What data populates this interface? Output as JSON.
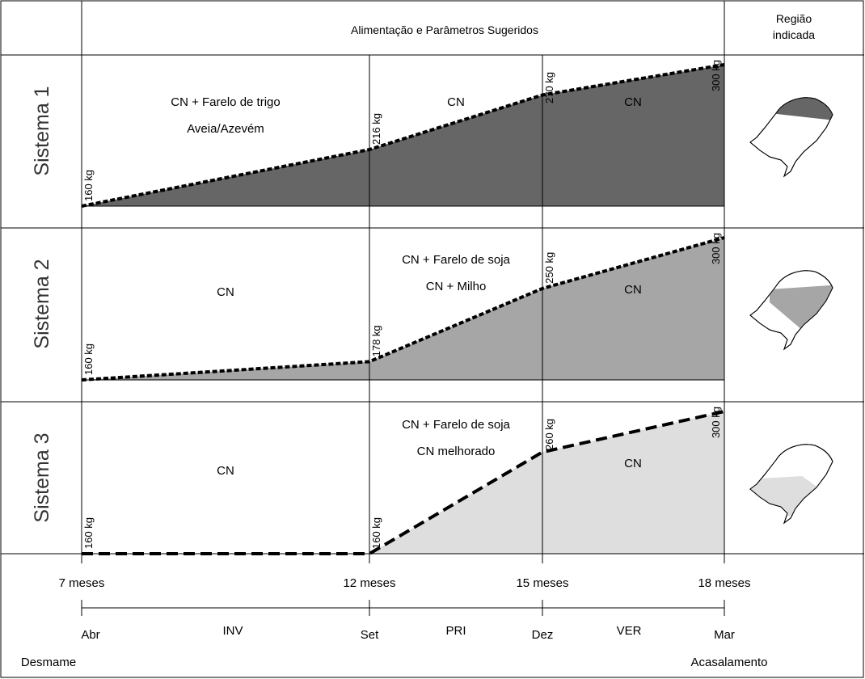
{
  "header": {
    "title": "Alimentação e Parâmetros Sugeridos",
    "region_line1": "Região",
    "region_line2": "indicada"
  },
  "systems": [
    {
      "name": "Sistema 1",
      "fill": "#666666",
      "weights": [
        160,
        216,
        270,
        300
      ],
      "weight_labels": [
        "160 kg",
        "216 kg",
        "270 kg",
        "300 kg"
      ],
      "segments": [
        {
          "lines": [
            "CN + Farelo de trigo",
            "Aveia/Azevém"
          ]
        },
        {
          "lines": [
            "CN"
          ]
        },
        {
          "lines": [
            "CN"
          ]
        }
      ],
      "map_icon": "rio-grande-do-sul-map-north-icon"
    },
    {
      "name": "Sistema 2",
      "fill": "#a6a6a6",
      "weights": [
        160,
        178,
        250,
        300
      ],
      "weight_labels": [
        "160 kg",
        "178 kg",
        "250 kg",
        "300 kg"
      ],
      "segments": [
        {
          "lines": [
            "CN"
          ]
        },
        {
          "lines": [
            "CN + Farelo de soja",
            "CN + Milho"
          ]
        },
        {
          "lines": [
            "CN"
          ]
        }
      ],
      "map_icon": "rio-grande-do-sul-map-central-icon"
    },
    {
      "name": "Sistema 3",
      "fill": "#dedede",
      "weights": [
        160,
        160,
        260,
        300
      ],
      "weight_labels": [
        "160 kg",
        "160 kg",
        "260 kg",
        "300 kg"
      ],
      "segments": [
        {
          "lines": [
            "CN"
          ]
        },
        {
          "lines": [
            "CN + Farelo de soja",
            "CN melhorado"
          ]
        },
        {
          "lines": [
            "CN"
          ]
        }
      ],
      "map_icon": "rio-grande-do-sul-map-south-icon"
    }
  ],
  "axis": {
    "ages": [
      "7 meses",
      "12 meses",
      "15 meses",
      "18 meses"
    ],
    "months": [
      "Abr",
      "Set",
      "Dez",
      "Mar"
    ],
    "seasons": [
      "INV",
      "PRI",
      "VER"
    ],
    "start_event": "Desmame",
    "end_event": "Acasalamento"
  }
}
